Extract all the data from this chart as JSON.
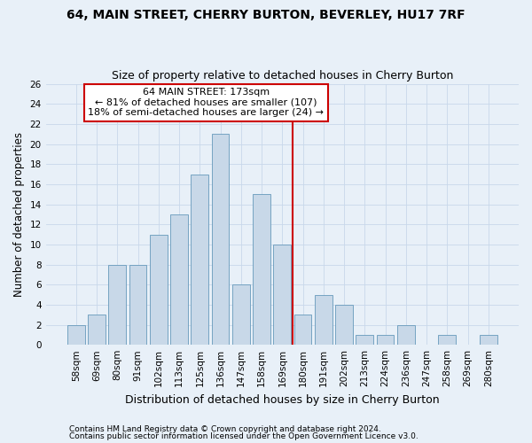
{
  "title": "64, MAIN STREET, CHERRY BURTON, BEVERLEY, HU17 7RF",
  "subtitle": "Size of property relative to detached houses in Cherry Burton",
  "xlabel": "Distribution of detached houses by size in Cherry Burton",
  "ylabel": "Number of detached properties",
  "categories": [
    "58sqm",
    "69sqm",
    "80sqm",
    "91sqm",
    "102sqm",
    "113sqm",
    "125sqm",
    "136sqm",
    "147sqm",
    "158sqm",
    "169sqm",
    "180sqm",
    "191sqm",
    "202sqm",
    "213sqm",
    "224sqm",
    "236sqm",
    "247sqm",
    "258sqm",
    "269sqm",
    "280sqm"
  ],
  "values": [
    2,
    3,
    8,
    8,
    11,
    13,
    17,
    21,
    6,
    15,
    10,
    3,
    5,
    4,
    1,
    1,
    2,
    0,
    1,
    0,
    1
  ],
  "bar_color": "#c8d8e8",
  "bar_edge_color": "#6699bb",
  "grid_color": "#c8d8ea",
  "bg_color": "#e8f0f8",
  "annotation_line1": "64 MAIN STREET: 173sqm",
  "annotation_line2": "← 81% of detached houses are smaller (107)",
  "annotation_line3": "18% of semi-detached houses are larger (24) →",
  "annotation_box_color": "#ffffff",
  "annotation_box_edge": "#cc0000",
  "vline_x_index": 10.5,
  "vline_color": "#cc0000",
  "ylim": [
    0,
    26
  ],
  "yticks": [
    0,
    2,
    4,
    6,
    8,
    10,
    12,
    14,
    16,
    18,
    20,
    22,
    24,
    26
  ],
  "footnote1": "Contains HM Land Registry data © Crown copyright and database right 2024.",
  "footnote2": "Contains public sector information licensed under the Open Government Licence v3.0.",
  "title_fontsize": 10,
  "subtitle_fontsize": 9,
  "ylabel_fontsize": 8.5,
  "xlabel_fontsize": 9,
  "tick_fontsize": 7.5,
  "annot_fontsize": 8,
  "footnote_fontsize": 6.5
}
